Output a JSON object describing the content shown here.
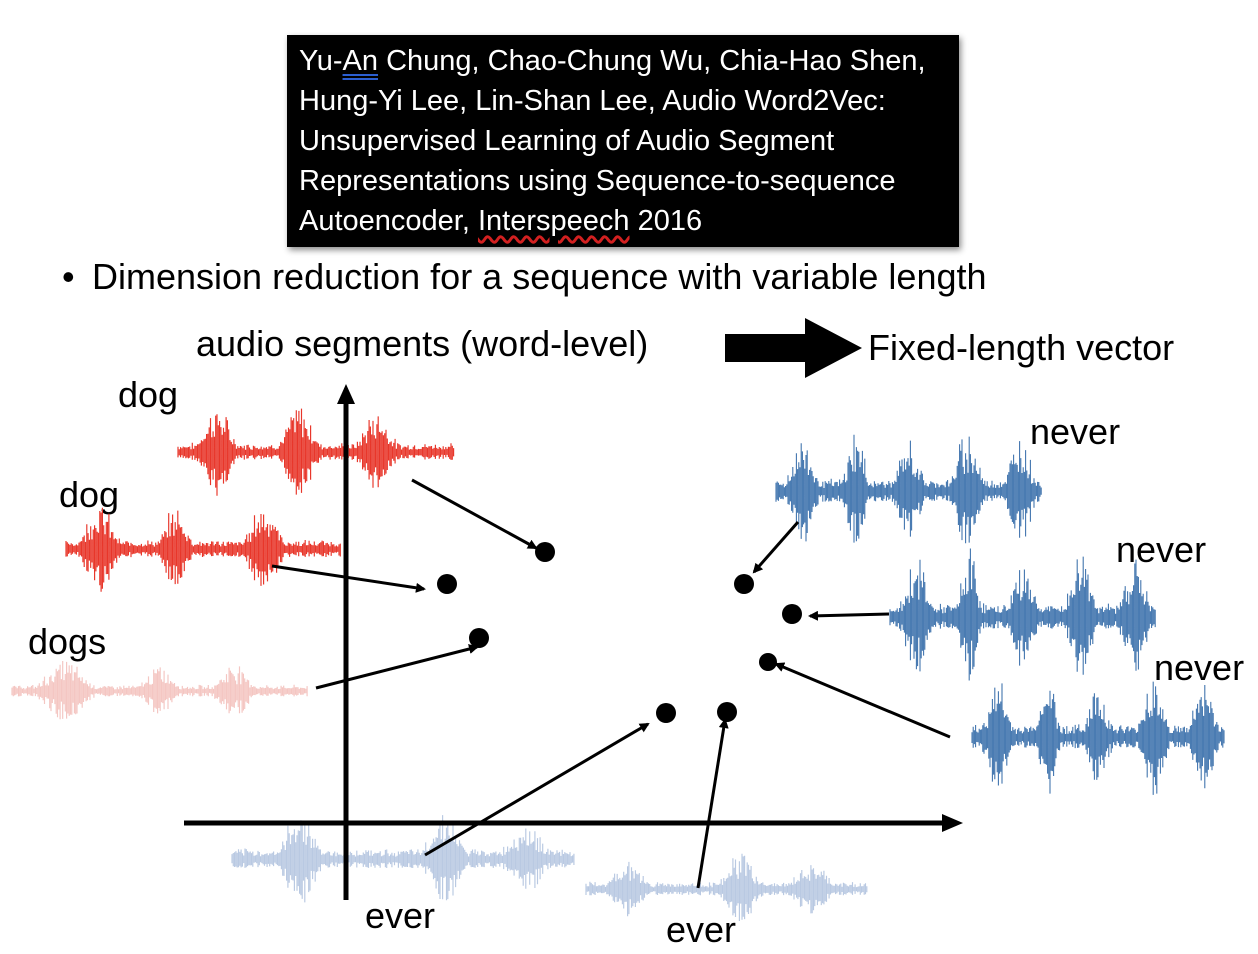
{
  "citation": {
    "lines": [
      [
        "Yu-",
        "An",
        " Chung, Chao-Chung Wu, Chia-Hao Shen,"
      ],
      [
        "Hung-Yi Lee, Lin-Shan Lee, Audio Word2Vec:"
      ],
      [
        "Unsupervised Learning of Audio Segment"
      ],
      [
        "Representations using Sequence-to-sequence"
      ],
      [
        "Autoencoder, ",
        "Interspeech",
        " 2016"
      ]
    ]
  },
  "bullet": {
    "symbol": "•",
    "text": "Dimension reduction for a sequence with variable length"
  },
  "mapping": {
    "source_label": "audio segments (word-level)",
    "target_label": "Fixed-length vector"
  },
  "words": {
    "dog_1": "dog",
    "dog_2": "dog",
    "dogs": "dogs",
    "never_1": "never",
    "never_2": "never",
    "never_3": "never",
    "ever_1": "ever",
    "ever_2": "ever"
  },
  "colors": {
    "dog_wave": "#e8362a",
    "dogs_wave": "#f4c6c2",
    "never_wave": "#3f73ad",
    "ever_wave": "#b9c9e2",
    "citation_bg": "#000000"
  }
}
